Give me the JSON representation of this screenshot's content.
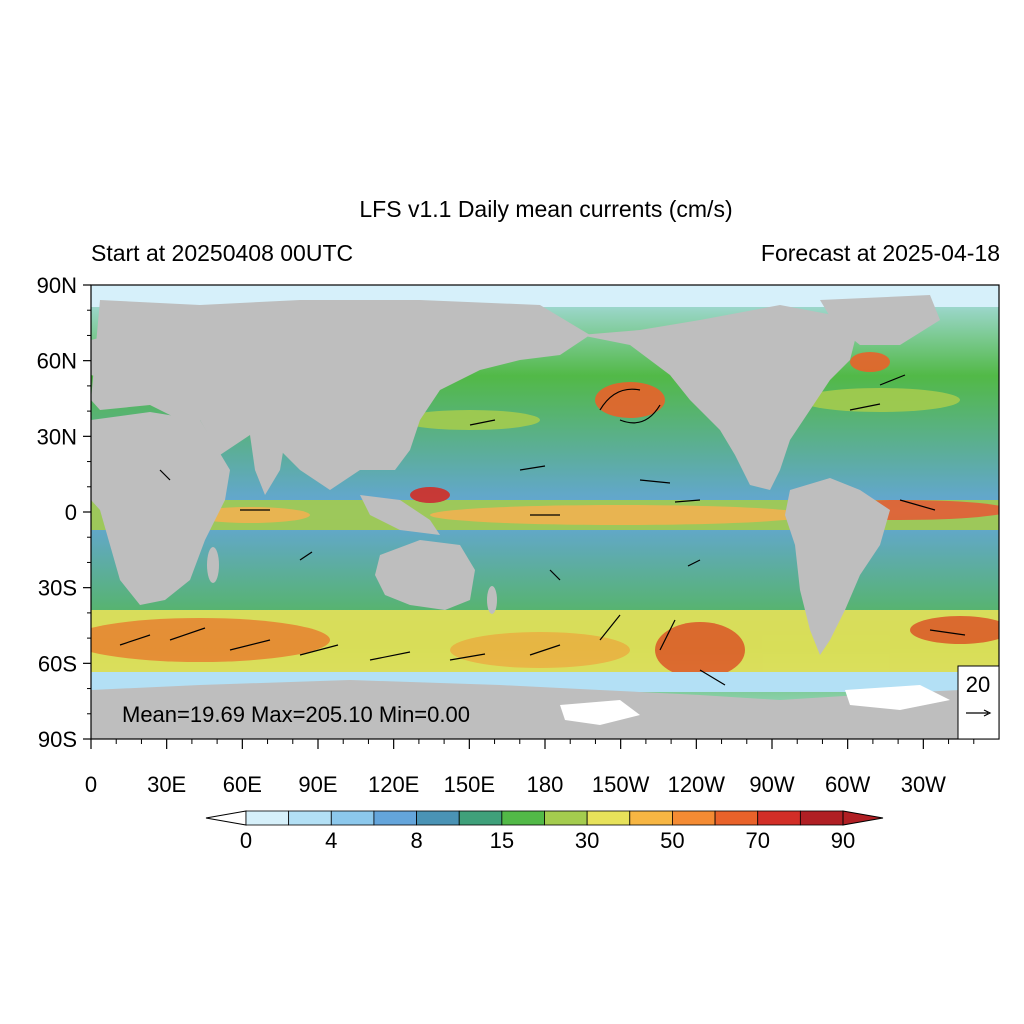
{
  "title": "LFS v1.1 Daily mean currents (cm/s)",
  "start_label": "Start at 20250408 00UTC",
  "forecast_label": "Forecast at 2025-04-18",
  "stats": {
    "text": "Mean=19.69  Max=205.10  Min=0.00",
    "mean": 19.69,
    "max": 205.1,
    "min": 0.0
  },
  "reference_vector": {
    "label": "20",
    "value": 20
  },
  "lat_ticks": [
    "90N",
    "60N",
    "30N",
    "0",
    "30S",
    "60S",
    "90S"
  ],
  "lon_ticks": [
    "0",
    "30E",
    "60E",
    "90E",
    "120E",
    "150E",
    "180",
    "150W",
    "120W",
    "90W",
    "60W",
    "30W"
  ],
  "colorbar": {
    "labels": [
      "0",
      "4",
      "8",
      "15",
      "30",
      "50",
      "70",
      "90"
    ],
    "colors": [
      "#d6f0fa",
      "#b3e0f5",
      "#8cc8ec",
      "#64a5db",
      "#4a93b5",
      "#3fa07a",
      "#52b947",
      "#a4cc4e",
      "#e7e25a",
      "#f7b643",
      "#f48b33",
      "#e9622a",
      "#d22e27",
      "#b01f24"
    ],
    "under_color": "#ffffff",
    "over_color": "#b01f24"
  },
  "map_colors": {
    "land": "#bebebe",
    "ocean_low": "#8fd0ee",
    "ocean_mid": "#3fa07a",
    "ocean_high": "#f7b643",
    "ocean_peak": "#d22e27",
    "ice": "#ffffff"
  }
}
